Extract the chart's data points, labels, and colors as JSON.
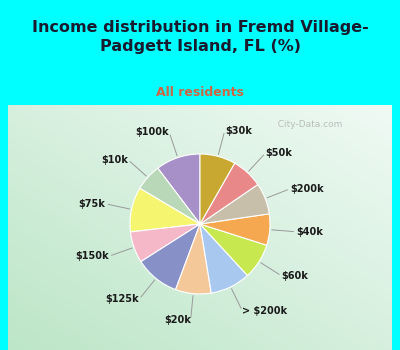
{
  "title": "Income distribution in Fremd Village-\nPadgett Island, FL (%)",
  "subtitle": "All residents",
  "labels": [
    "$100k",
    "$10k",
    "$75k",
    "$150k",
    "$125k",
    "$20k",
    "> $200k",
    "$60k",
    "$40k",
    "$200k",
    "$50k",
    "$30k"
  ],
  "sizes": [
    10,
    6,
    10,
    7,
    10,
    8,
    9,
    8,
    7,
    7,
    7,
    8
  ],
  "colors": [
    "#a78fc8",
    "#b8d8b8",
    "#f5f570",
    "#f4b8c8",
    "#8890c8",
    "#f5c89a",
    "#a8c8f0",
    "#c8e850",
    "#f5a850",
    "#c8bfaa",
    "#e88888",
    "#c8a830"
  ],
  "background_cyan": "#00ffff",
  "background_chart_tl": "#c8eedd",
  "background_chart_br": "#e8f8f0",
  "title_color": "#1a1a2e",
  "subtitle_color": "#cc6644",
  "label_color": "#1a1a1a",
  "watermark": "  City-Data.com",
  "title_fontsize": 11.5,
  "subtitle_fontsize": 9,
  "label_fontsize": 7
}
